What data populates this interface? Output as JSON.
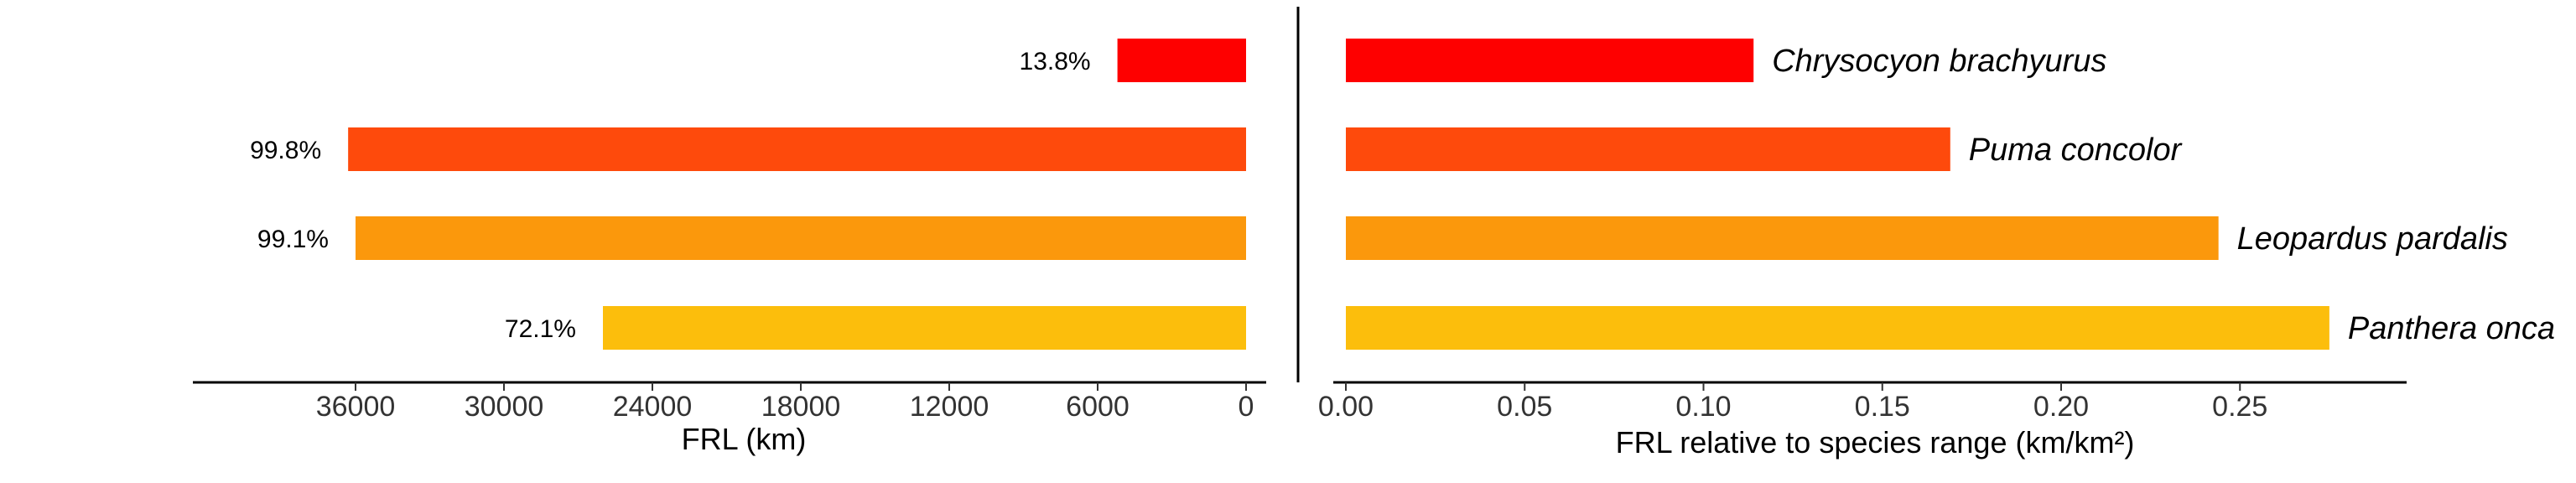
{
  "chart_data": [
    {
      "type": "bar",
      "orientation": "horizontal",
      "reversed_x": true,
      "categories": [
        "Chrysocyon brachyurus",
        "Puma concolor",
        "Leopardus pardalis",
        "Panthera onca"
      ],
      "values": [
        5200,
        36300,
        36000,
        26000
      ],
      "data_labels": [
        "13.8%",
        "99.8%",
        "99.1%",
        "72.1%"
      ],
      "xlabel": "FRL (km)",
      "xlim": [
        0,
        41000
      ],
      "xticks": [
        36000,
        30000,
        24000,
        18000,
        12000,
        6000,
        0
      ],
      "xtick_labels": [
        "36000",
        "30000",
        "24000",
        "18000",
        "12000",
        "6000",
        "0"
      ]
    },
    {
      "type": "bar",
      "orientation": "horizontal",
      "categories": [
        "Chrysocyon brachyurus",
        "Puma concolor",
        "Leopardus pardalis",
        "Panthera onca"
      ],
      "values": [
        0.114,
        0.169,
        0.244,
        0.275
      ],
      "xlabel": "FRL relative to species range (km/km²)",
      "xlim": [
        0,
        0.29
      ],
      "xticks": [
        0,
        0.05,
        0.1,
        0.15,
        0.2,
        0.25
      ],
      "xtick_labels": [
        "0.00",
        "0.05",
        "0.10",
        "0.15",
        "0.20",
        "0.25"
      ]
    }
  ],
  "colors": [
    "#fe0000",
    "#fe4a0c",
    "#fb980c",
    "#fcbe0c"
  ]
}
